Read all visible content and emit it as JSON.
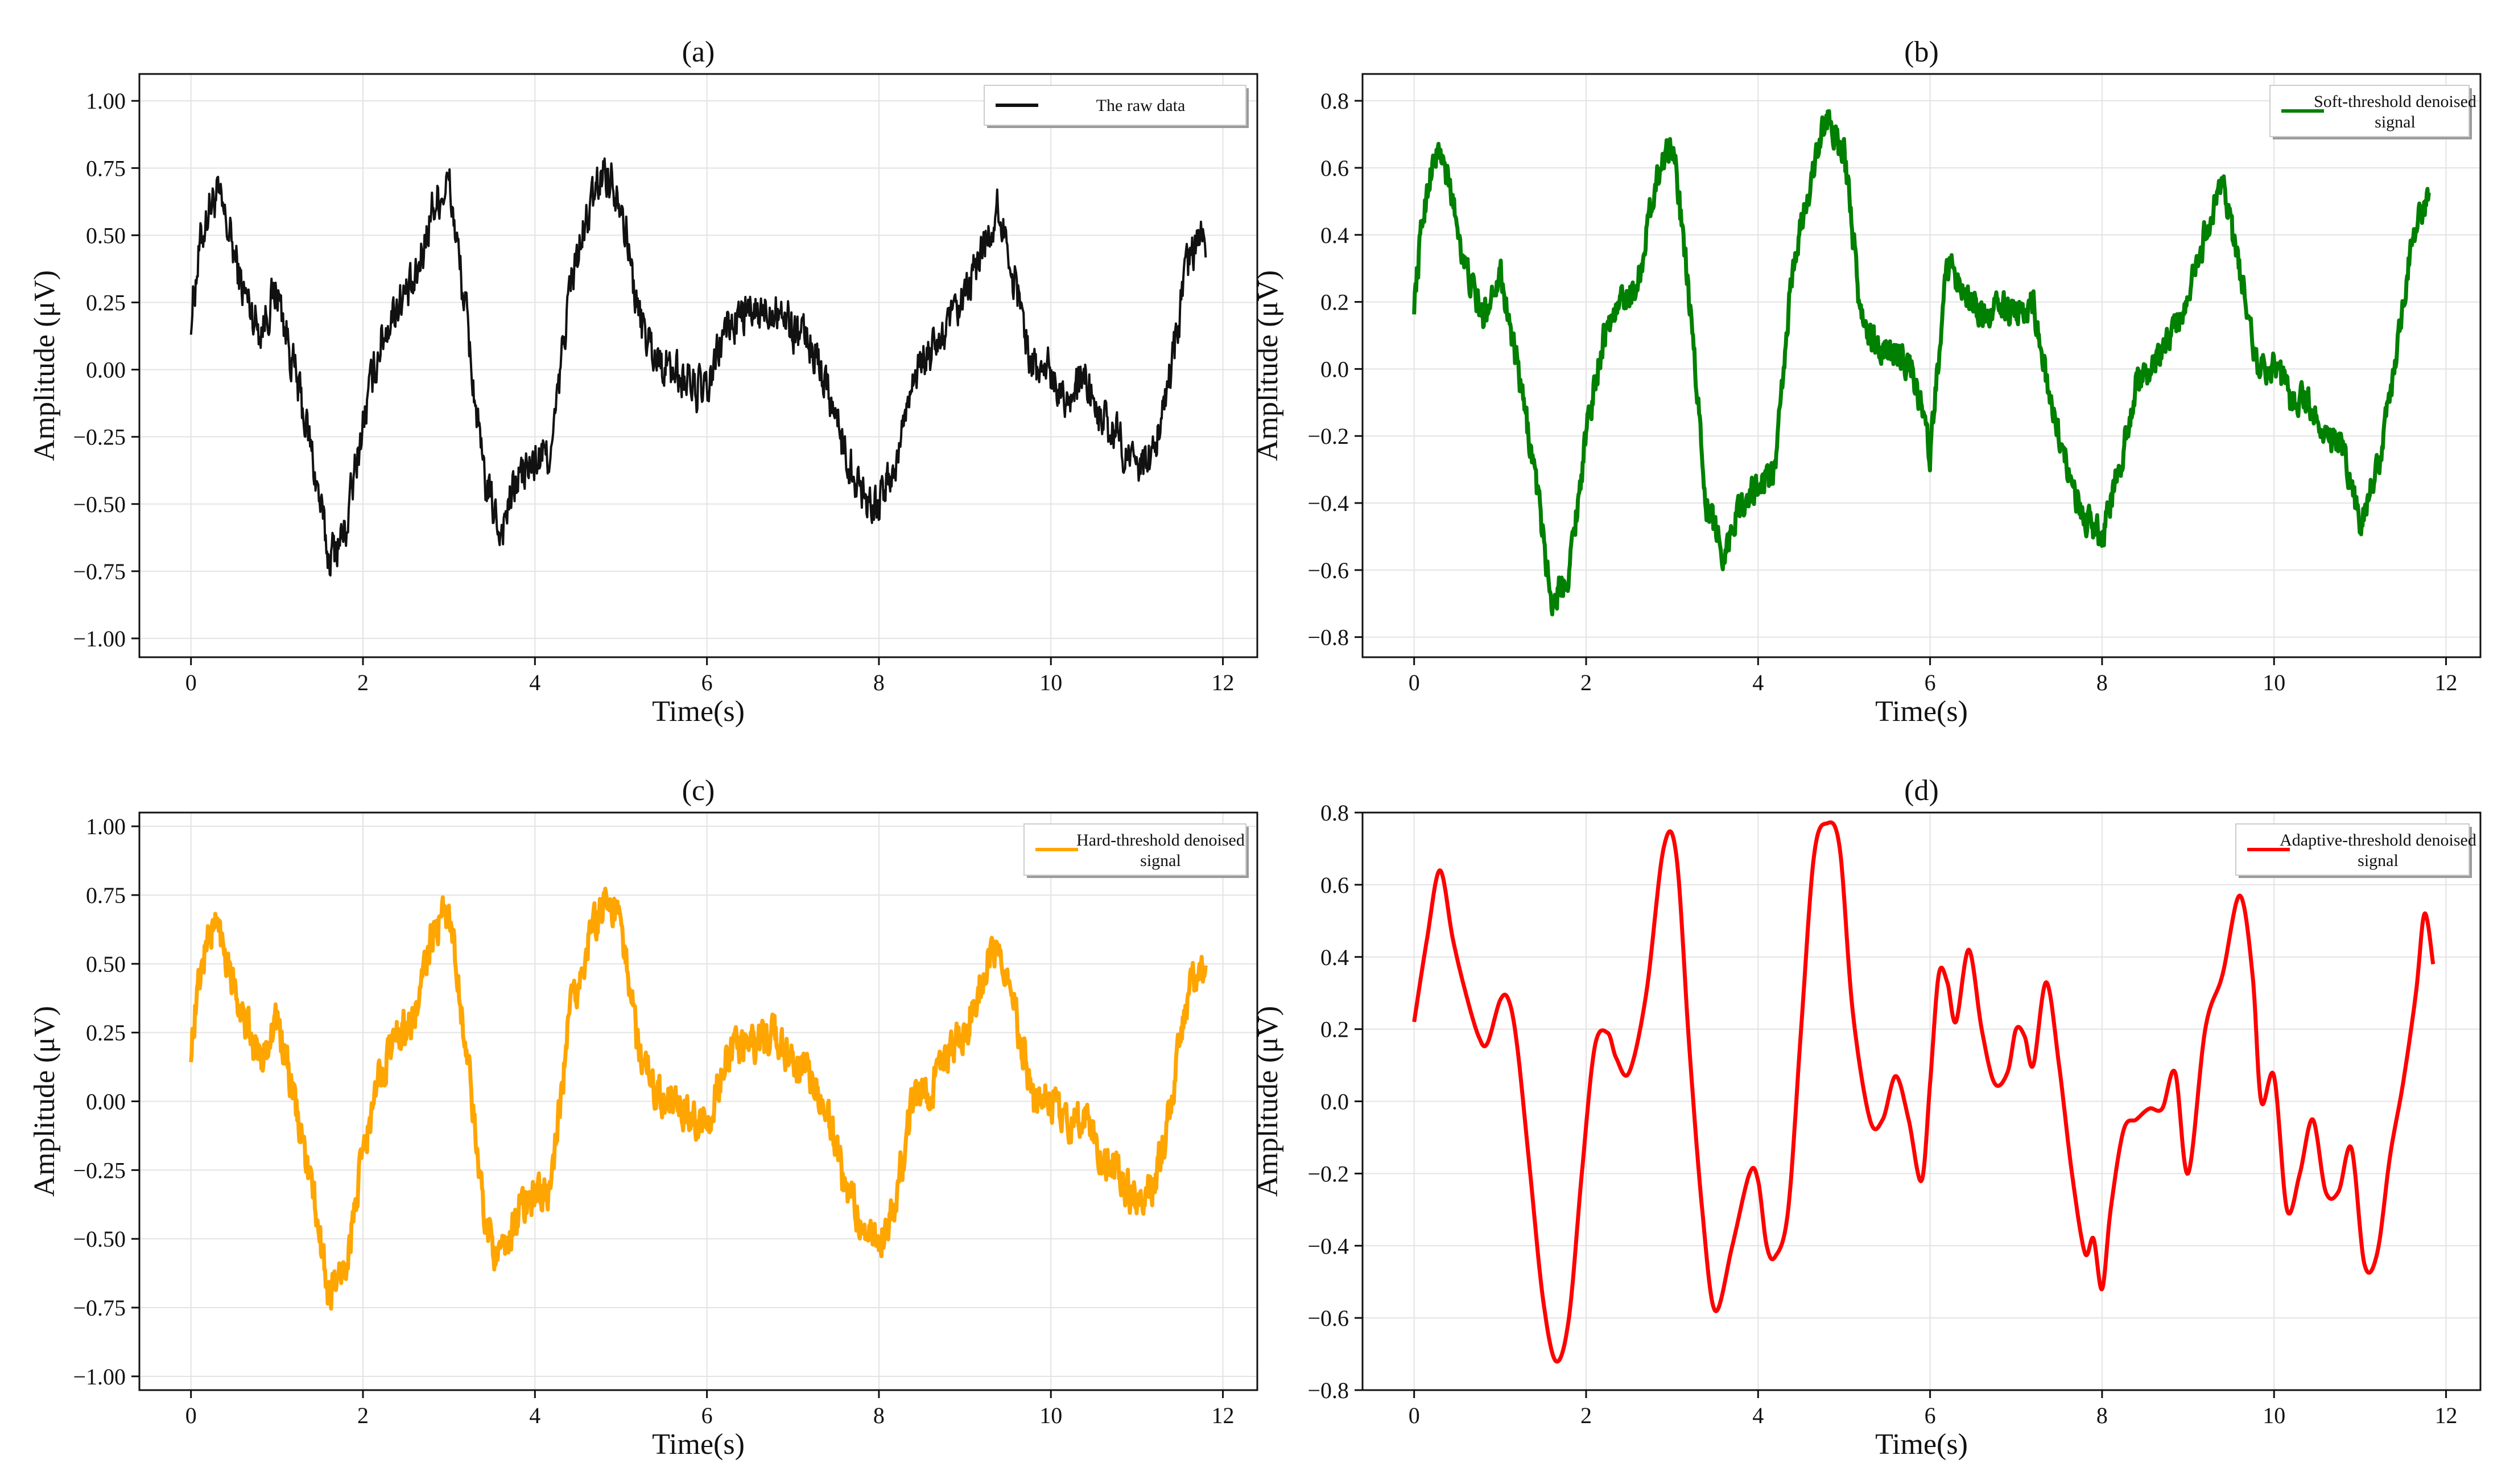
{
  "chart_data": [
    {
      "type": "line",
      "title": "(a)",
      "xlabel": "Time(s)",
      "ylabel": "Amplitude (μV)",
      "xlim": [
        -0.6,
        12.4
      ],
      "ylim": [
        -1.07,
        1.1
      ],
      "xticks": [
        0,
        2,
        4,
        6,
        8,
        10,
        12
      ],
      "xtick_labels": [
        "0",
        "2",
        "4",
        "6",
        "8",
        "10",
        "12"
      ],
      "yticks": [
        -1.0,
        -0.75,
        -0.5,
        -0.25,
        0.0,
        0.25,
        0.5,
        0.75,
        1.0
      ],
      "ytick_labels": [
        "−1.00",
        "−0.75",
        "−0.50",
        "−0.25",
        "0.00",
        "0.25",
        "0.50",
        "0.75",
        "1.00"
      ],
      "grid": true,
      "legend_position": "top-right",
      "color": "#111111",
      "noise": 0.13,
      "series": [
        {
          "name": "The raw data",
          "x": [
            0,
            0.1,
            0.2,
            0.3,
            0.45,
            0.6,
            0.8,
            1.0,
            1.2,
            1.4,
            1.6,
            1.8,
            2.0,
            2.2,
            2.4,
            2.6,
            2.8,
            3.0,
            3.2,
            3.4,
            3.6,
            3.8,
            4.0,
            4.2,
            4.4,
            4.6,
            4.8,
            5.0,
            5.2,
            5.4,
            5.6,
            5.8,
            6.0,
            6.2,
            6.4,
            6.6,
            6.8,
            7.0,
            7.2,
            7.4,
            7.6,
            7.8,
            8.0,
            8.2,
            8.4,
            8.6,
            8.8,
            9.0,
            9.2,
            9.4,
            9.6,
            9.8,
            10.0,
            10.2,
            10.4,
            10.6,
            10.8,
            11.0,
            11.2,
            11.4,
            11.6,
            11.8
          ],
          "y": [
            0.2,
            0.45,
            0.6,
            0.65,
            0.5,
            0.3,
            0.15,
            0.3,
            0.0,
            -0.3,
            -0.7,
            -0.6,
            -0.2,
            0.1,
            0.25,
            0.3,
            0.6,
            0.7,
            0.2,
            -0.4,
            -0.6,
            -0.4,
            -0.35,
            -0.3,
            0.3,
            0.55,
            0.75,
            0.65,
            0.2,
            0.05,
            0.0,
            -0.05,
            -0.1,
            0.15,
            0.2,
            0.2,
            0.25,
            0.15,
            0.1,
            -0.05,
            -0.3,
            -0.45,
            -0.5,
            -0.35,
            0.0,
            0.05,
            0.15,
            0.25,
            0.45,
            0.6,
            0.3,
            0.0,
            0.0,
            -0.1,
            -0.05,
            -0.2,
            -0.25,
            -0.4,
            -0.3,
            0.0,
            0.4,
            0.5
          ]
        }
      ]
    },
    {
      "type": "line",
      "title": "(b)",
      "xlabel": "Time(s)",
      "ylabel": "Amplitude (μV)",
      "xlim": [
        -0.6,
        12.4
      ],
      "ylim": [
        -0.86,
        0.88
      ],
      "xticks": [
        0,
        2,
        4,
        6,
        8,
        10,
        12
      ],
      "xtick_labels": [
        "0",
        "2",
        "4",
        "6",
        "8",
        "10",
        "12"
      ],
      "yticks": [
        -0.8,
        -0.6,
        -0.4,
        -0.2,
        0.0,
        0.2,
        0.4,
        0.6,
        0.8
      ],
      "ytick_labels": [
        "−0.8",
        "−0.6",
        "−0.4",
        "−0.2",
        "0.0",
        "0.2",
        "0.4",
        "0.6",
        "0.8"
      ],
      "grid": true,
      "legend_position": "top-right",
      "color": "#008000",
      "noise": 0.07,
      "series": [
        {
          "name": "Soft-threshold denoised signal",
          "x": [
            0,
            0.1,
            0.2,
            0.3,
            0.45,
            0.6,
            0.8,
            1.0,
            1.2,
            1.4,
            1.6,
            1.8,
            2.0,
            2.2,
            2.4,
            2.6,
            2.8,
            3.0,
            3.2,
            3.4,
            3.6,
            3.8,
            4.0,
            4.2,
            4.4,
            4.6,
            4.8,
            5.0,
            5.2,
            5.4,
            5.6,
            5.8,
            6.0,
            6.2,
            6.4,
            6.6,
            6.8,
            7.0,
            7.2,
            7.4,
            7.6,
            7.8,
            8.0,
            8.2,
            8.4,
            8.6,
            8.8,
            9.0,
            9.2,
            9.4,
            9.6,
            9.8,
            10.0,
            10.2,
            10.4,
            10.6,
            10.8,
            11.0,
            11.2,
            11.4,
            11.6,
            11.8
          ],
          "y": [
            0.2,
            0.45,
            0.6,
            0.65,
            0.5,
            0.3,
            0.15,
            0.3,
            0.0,
            -0.3,
            -0.7,
            -0.6,
            -0.2,
            0.1,
            0.2,
            0.25,
            0.55,
            0.7,
            0.2,
            -0.4,
            -0.55,
            -0.4,
            -0.35,
            -0.3,
            0.3,
            0.55,
            0.75,
            0.65,
            0.15,
            0.05,
            0.05,
            0.0,
            -0.25,
            0.3,
            0.25,
            0.15,
            0.2,
            0.15,
            0.2,
            -0.1,
            -0.3,
            -0.45,
            -0.5,
            -0.3,
            -0.05,
            0.0,
            0.1,
            0.2,
            0.4,
            0.55,
            0.3,
            0.0,
            0.0,
            -0.1,
            -0.1,
            -0.2,
            -0.25,
            -0.45,
            -0.3,
            0.0,
            0.4,
            0.5
          ]
        }
      ]
    },
    {
      "type": "line",
      "title": "(c)",
      "xlabel": "Time(s)",
      "ylabel": "Amplitude (μV)",
      "xlim": [
        -0.6,
        12.4
      ],
      "ylim": [
        -1.05,
        1.05
      ],
      "xticks": [
        0,
        2,
        4,
        6,
        8,
        10,
        12
      ],
      "xtick_labels": [
        "0",
        "2",
        "4",
        "6",
        "8",
        "10",
        "12"
      ],
      "yticks": [
        -1.0,
        -0.75,
        -0.5,
        -0.25,
        0.0,
        0.25,
        0.5,
        0.75,
        1.0
      ],
      "ytick_labels": [
        "−1.00",
        "−0.75",
        "−0.50",
        "−0.25",
        "0.00",
        "0.25",
        "0.50",
        "0.75",
        "1.00"
      ],
      "grid": true,
      "legend_position": "top-right",
      "color": "#FFA500",
      "noise": 0.11,
      "series": [
        {
          "name": "Hard-threshold denoised signal",
          "x": [
            0,
            0.1,
            0.2,
            0.3,
            0.45,
            0.6,
            0.8,
            1.0,
            1.2,
            1.4,
            1.6,
            1.8,
            2.0,
            2.2,
            2.4,
            2.6,
            2.8,
            3.0,
            3.2,
            3.4,
            3.6,
            3.8,
            4.0,
            4.2,
            4.4,
            4.6,
            4.8,
            5.0,
            5.2,
            5.4,
            5.6,
            5.8,
            6.0,
            6.2,
            6.4,
            6.6,
            6.8,
            7.0,
            7.2,
            7.4,
            7.6,
            7.8,
            8.0,
            8.2,
            8.4,
            8.6,
            8.8,
            9.0,
            9.2,
            9.4,
            9.6,
            9.8,
            10.0,
            10.2,
            10.4,
            10.6,
            10.8,
            11.0,
            11.2,
            11.4,
            11.6,
            11.8
          ],
          "y": [
            0.2,
            0.45,
            0.6,
            0.65,
            0.5,
            0.3,
            0.15,
            0.3,
            0.0,
            -0.3,
            -0.7,
            -0.6,
            -0.2,
            0.1,
            0.25,
            0.3,
            0.6,
            0.7,
            0.2,
            -0.4,
            -0.6,
            -0.4,
            -0.35,
            -0.3,
            0.3,
            0.55,
            0.75,
            0.65,
            0.2,
            0.05,
            0.0,
            -0.05,
            -0.1,
            0.15,
            0.2,
            0.2,
            0.25,
            0.15,
            0.1,
            -0.05,
            -0.3,
            -0.45,
            -0.5,
            -0.35,
            0.0,
            0.05,
            0.15,
            0.25,
            0.45,
            0.6,
            0.3,
            0.0,
            0.0,
            -0.1,
            -0.05,
            -0.2,
            -0.25,
            -0.4,
            -0.3,
            0.0,
            0.4,
            0.5
          ]
        }
      ]
    },
    {
      "type": "line",
      "title": "(d)",
      "xlabel": "Time(s)",
      "ylabel": "Amplitude (μV)",
      "xlim": [
        -0.6,
        12.4
      ],
      "ylim": [
        -0.8,
        0.8
      ],
      "xticks": [
        0,
        2,
        4,
        6,
        8,
        10,
        12
      ],
      "xtick_labels": [
        "0",
        "2",
        "4",
        "6",
        "8",
        "10",
        "12"
      ],
      "yticks": [
        -0.8,
        -0.6,
        -0.4,
        -0.2,
        0.0,
        0.2,
        0.4,
        0.6,
        0.8
      ],
      "ytick_labels": [
        "−0.8",
        "−0.6",
        "−0.4",
        "−0.2",
        "0.0",
        "0.2",
        "0.4",
        "0.6",
        "0.8"
      ],
      "grid": true,
      "legend_position": "top-right",
      "color": "#FF0000",
      "noise": 0,
      "series": [
        {
          "name": "Adaptive-threshold denoised signal",
          "x": [
            0,
            0.15,
            0.3,
            0.45,
            0.6,
            0.75,
            0.85,
            1.0,
            1.1,
            1.2,
            1.35,
            1.5,
            1.65,
            1.8,
            1.95,
            2.1,
            2.25,
            2.35,
            2.5,
            2.7,
            2.9,
            3.05,
            3.2,
            3.35,
            3.5,
            3.7,
            3.9,
            4.0,
            4.1,
            4.2,
            4.35,
            4.5,
            4.65,
            4.8,
            4.95,
            5.1,
            5.3,
            5.45,
            5.6,
            5.75,
            5.9,
            6.0,
            6.1,
            6.2,
            6.3,
            6.45,
            6.6,
            6.75,
            6.9,
            7.0,
            7.1,
            7.2,
            7.35,
            7.5,
            7.65,
            7.8,
            7.9,
            8.0,
            8.1,
            8.25,
            8.4,
            8.55,
            8.7,
            8.85,
            9.0,
            9.2,
            9.4,
            9.6,
            9.75,
            9.85,
            10.0,
            10.15,
            10.3,
            10.45,
            10.6,
            10.75,
            10.9,
            11.05,
            11.2,
            11.35,
            11.5,
            11.65,
            11.75,
            11.85
          ],
          "y": [
            0.22,
            0.45,
            0.64,
            0.45,
            0.3,
            0.18,
            0.16,
            0.28,
            0.28,
            0.15,
            -0.2,
            -0.55,
            -0.72,
            -0.6,
            -0.2,
            0.15,
            0.19,
            0.12,
            0.08,
            0.3,
            0.7,
            0.68,
            0.15,
            -0.3,
            -0.58,
            -0.4,
            -0.2,
            -0.22,
            -0.4,
            -0.43,
            -0.3,
            0.2,
            0.68,
            0.77,
            0.7,
            0.25,
            -0.05,
            -0.05,
            0.07,
            -0.05,
            -0.22,
            0.05,
            0.35,
            0.33,
            0.22,
            0.42,
            0.2,
            0.05,
            0.08,
            0.2,
            0.18,
            0.1,
            0.33,
            0.1,
            -0.2,
            -0.42,
            -0.38,
            -0.52,
            -0.3,
            -0.08,
            -0.05,
            -0.02,
            -0.02,
            0.08,
            -0.2,
            0.2,
            0.35,
            0.57,
            0.35,
            0.0,
            0.07,
            -0.3,
            -0.2,
            -0.05,
            -0.25,
            -0.25,
            -0.13,
            -0.45,
            -0.42,
            -0.15,
            0.05,
            0.3,
            0.52,
            0.38
          ]
        }
      ]
    }
  ]
}
